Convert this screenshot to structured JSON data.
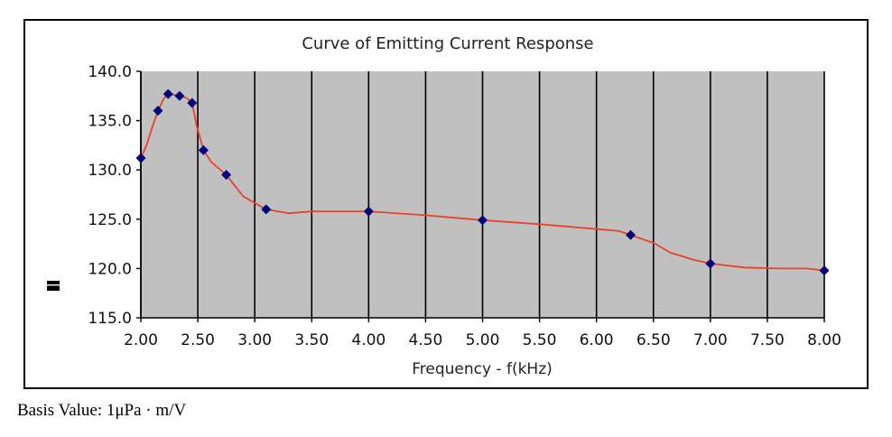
{
  "chart_data": {
    "type": "line",
    "title": "Curve of Emitting Current Response",
    "xlabel": "Frequency - f(kHz)",
    "ylabel": "",
    "xlim": [
      2.0,
      8.0
    ],
    "ylim": [
      115.0,
      140.0
    ],
    "xticks": [
      "2.00",
      "2.50",
      "3.00",
      "3.50",
      "4.00",
      "4.50",
      "5.00",
      "5.50",
      "6.00",
      "6.50",
      "7.00",
      "7.50",
      "8.00"
    ],
    "yticks": [
      "140.0",
      "135.0",
      "130.0",
      "125.0",
      "120.0",
      "115.0"
    ],
    "grid": true,
    "plot_background": "#c0c0c0",
    "line_color": "#e8412c",
    "marker_color": "#00007a",
    "series": [
      {
        "markers": [
          {
            "x": 2.0,
            "y": 131.2
          },
          {
            "x": 2.15,
            "y": 136.0
          },
          {
            "x": 2.24,
            "y": 137.7
          },
          {
            "x": 2.34,
            "y": 137.5
          },
          {
            "x": 2.45,
            "y": 136.8
          },
          {
            "x": 2.55,
            "y": 132.0
          },
          {
            "x": 2.75,
            "y": 129.5
          },
          {
            "x": 3.1,
            "y": 126.0
          },
          {
            "x": 4.0,
            "y": 125.8
          },
          {
            "x": 5.0,
            "y": 124.9
          },
          {
            "x": 6.3,
            "y": 123.4
          },
          {
            "x": 7.0,
            "y": 120.5
          },
          {
            "x": 8.0,
            "y": 119.8
          }
        ],
        "curve": [
          {
            "x": 2.0,
            "y": 131.2
          },
          {
            "x": 2.05,
            "y": 132.5
          },
          {
            "x": 2.1,
            "y": 134.3
          },
          {
            "x": 2.15,
            "y": 136.0
          },
          {
            "x": 2.2,
            "y": 137.2
          },
          {
            "x": 2.24,
            "y": 137.7
          },
          {
            "x": 2.3,
            "y": 137.6
          },
          {
            "x": 2.34,
            "y": 137.5
          },
          {
            "x": 2.4,
            "y": 137.3
          },
          {
            "x": 2.45,
            "y": 136.8
          },
          {
            "x": 2.49,
            "y": 134.5
          },
          {
            "x": 2.55,
            "y": 132.0
          },
          {
            "x": 2.62,
            "y": 130.8
          },
          {
            "x": 2.75,
            "y": 129.5
          },
          {
            "x": 2.9,
            "y": 127.3
          },
          {
            "x": 3.1,
            "y": 126.0
          },
          {
            "x": 3.3,
            "y": 125.6
          },
          {
            "x": 3.5,
            "y": 125.8
          },
          {
            "x": 3.75,
            "y": 125.8
          },
          {
            "x": 4.0,
            "y": 125.8
          },
          {
            "x": 4.5,
            "y": 125.4
          },
          {
            "x": 5.0,
            "y": 124.9
          },
          {
            "x": 5.5,
            "y": 124.5
          },
          {
            "x": 6.0,
            "y": 124.0
          },
          {
            "x": 6.2,
            "y": 123.8
          },
          {
            "x": 6.3,
            "y": 123.4
          },
          {
            "x": 6.5,
            "y": 122.6
          },
          {
            "x": 6.65,
            "y": 121.6
          },
          {
            "x": 6.85,
            "y": 120.9
          },
          {
            "x": 7.0,
            "y": 120.5
          },
          {
            "x": 7.3,
            "y": 120.1
          },
          {
            "x": 7.6,
            "y": 120.0
          },
          {
            "x": 7.85,
            "y": 120.0
          },
          {
            "x": 8.0,
            "y": 119.8
          }
        ]
      }
    ]
  },
  "footnote": "Basis Value: 1μPa · m/V"
}
